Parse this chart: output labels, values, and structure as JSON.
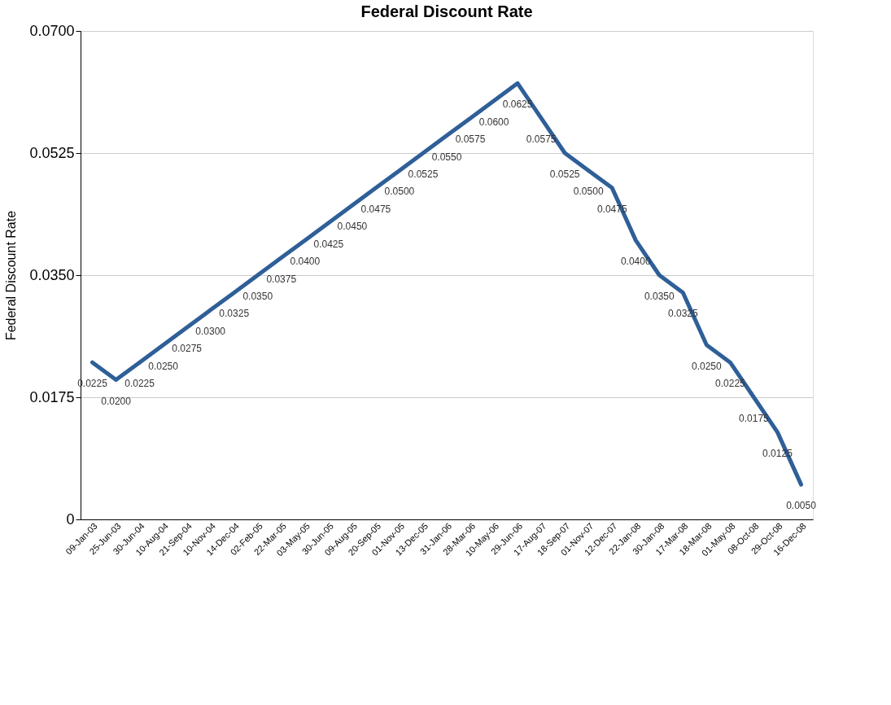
{
  "chart_data": {
    "type": "line",
    "title": "Federal Discount Rate",
    "ylabel": "Federal Discount Rate",
    "categories": [
      "09-Jan-03",
      "25-Jun-03",
      "30-Jun-04",
      "10-Aug-04",
      "21-Sep-04",
      "10-Nov-04",
      "14-Dec-04",
      "02-Feb-05",
      "22-Mar-05",
      "03-May-05",
      "30-Jun-05",
      "09-Aug-05",
      "20-Sep-05",
      "01-Nov-05",
      "13-Dec-05",
      "31-Jan-06",
      "28-Mar-06",
      "10-May-06",
      "29-Jun-06",
      "17-Aug-07",
      "18-Sep-07",
      "01-Nov-07",
      "12-Dec-07",
      "22-Jan-08",
      "30-Jan-08",
      "17-Mar-08",
      "18-Mar-08",
      "01-May-08",
      "08-Oct-08",
      "29-Oct-08",
      "16-Dec-08"
    ],
    "series": [
      {
        "color": "#2f5f98",
        "values": [
          0.0225,
          0.02,
          0.0225,
          0.025,
          0.0275,
          0.03,
          0.0325,
          0.035,
          0.0375,
          0.04,
          0.0425,
          0.045,
          0.0475,
          0.05,
          0.0525,
          0.055,
          0.0575,
          0.06,
          0.0625,
          0.0575,
          0.0525,
          0.05,
          0.0475,
          0.04,
          0.035,
          0.0325,
          0.025,
          0.0225,
          0.0175,
          0.0125,
          0.005
        ],
        "value_labels": [
          "0.0225",
          "0.0200",
          "0.0225",
          "0.0250",
          "0.0275",
          "0.0300",
          "0.0325",
          "0.0350",
          "0.0375",
          "0.0400",
          "0.0425",
          "0.0450",
          "0.0475",
          "0.0500",
          "0.0525",
          "0.0550",
          "0.0575",
          "0.0600",
          "0.0625",
          "0.0575",
          "0.0525",
          "0.0500",
          "0.0475",
          "0.0400",
          "0.0350",
          "0.0325",
          "0.0250",
          "0.0225",
          "0.0175",
          "0.0125",
          "0.0050"
        ]
      }
    ],
    "ylim": [
      0,
      0.07
    ],
    "yticks": [
      0,
      {
        "value": 0.0175,
        "label": "0.0175"
      },
      {
        "value": 0.035,
        "label": "0.0350"
      },
      {
        "value": 0.0525,
        "label": "0.0525"
      },
      {
        "value": 0.07,
        "label": "0.0700"
      }
    ],
    "grid": "y",
    "marker": "none",
    "line_style": "solid"
  }
}
